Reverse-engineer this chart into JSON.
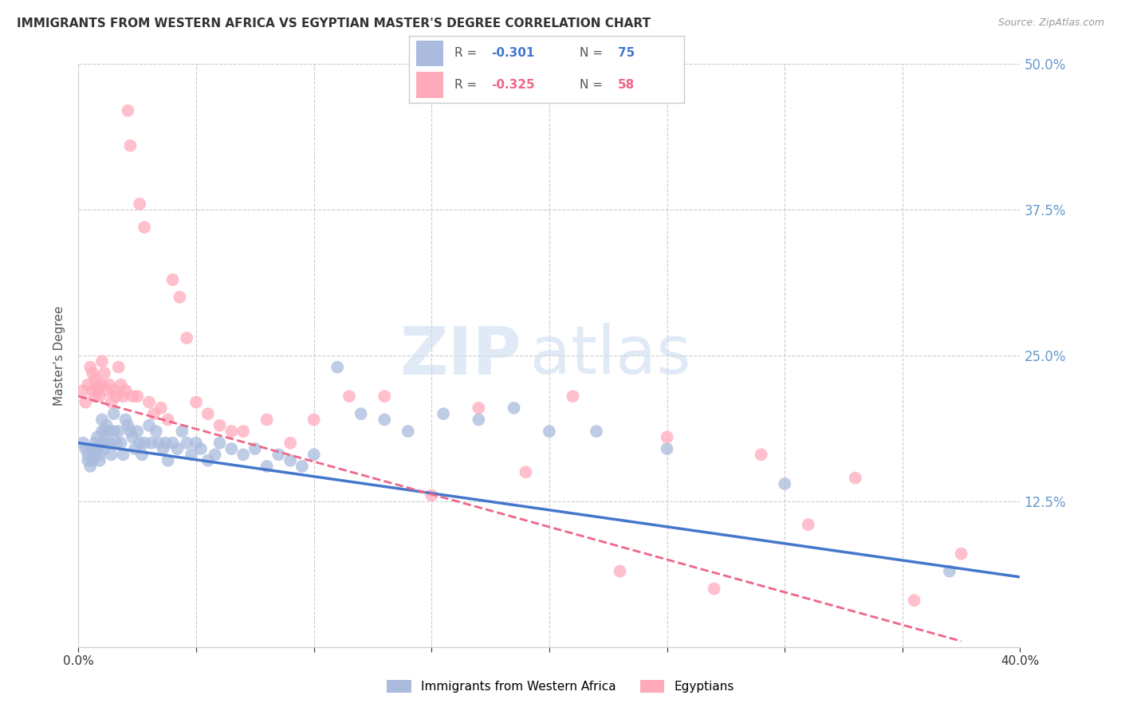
{
  "title": "IMMIGRANTS FROM WESTERN AFRICA VS EGYPTIAN MASTER'S DEGREE CORRELATION CHART",
  "source": "Source: ZipAtlas.com",
  "ylabel": "Master's Degree",
  "yticks": [
    0.0,
    0.125,
    0.25,
    0.375,
    0.5
  ],
  "ytick_labels": [
    "",
    "12.5%",
    "25.0%",
    "37.5%",
    "50.0%"
  ],
  "xlim": [
    0.0,
    0.4
  ],
  "ylim": [
    0.0,
    0.5
  ],
  "color_blue": "#AABBDD",
  "color_pink": "#FFAABB",
  "color_blue_dark": "#4477CC",
  "color_pink_dark": "#EE6688",
  "watermark_zip": "ZIP",
  "watermark_atlas": "atlas",
  "label1": "Immigrants from Western Africa",
  "label2": "Egyptians",
  "blue_x": [
    0.002,
    0.003,
    0.004,
    0.004,
    0.005,
    0.006,
    0.006,
    0.007,
    0.007,
    0.008,
    0.008,
    0.009,
    0.009,
    0.01,
    0.01,
    0.01,
    0.011,
    0.011,
    0.012,
    0.012,
    0.013,
    0.013,
    0.014,
    0.015,
    0.015,
    0.016,
    0.017,
    0.018,
    0.019,
    0.02,
    0.021,
    0.022,
    0.023,
    0.024,
    0.025,
    0.026,
    0.027,
    0.028,
    0.03,
    0.031,
    0.033,
    0.034,
    0.036,
    0.037,
    0.038,
    0.04,
    0.042,
    0.044,
    0.046,
    0.048,
    0.05,
    0.052,
    0.055,
    0.058,
    0.06,
    0.065,
    0.07,
    0.075,
    0.08,
    0.085,
    0.09,
    0.095,
    0.1,
    0.11,
    0.12,
    0.13,
    0.14,
    0.155,
    0.17,
    0.185,
    0.2,
    0.22,
    0.25,
    0.3,
    0.37
  ],
  "blue_y": [
    0.175,
    0.17,
    0.165,
    0.16,
    0.155,
    0.17,
    0.16,
    0.175,
    0.165,
    0.18,
    0.17,
    0.165,
    0.16,
    0.195,
    0.185,
    0.175,
    0.185,
    0.17,
    0.19,
    0.175,
    0.185,
    0.175,
    0.165,
    0.2,
    0.185,
    0.175,
    0.185,
    0.175,
    0.165,
    0.195,
    0.19,
    0.185,
    0.18,
    0.17,
    0.185,
    0.175,
    0.165,
    0.175,
    0.19,
    0.175,
    0.185,
    0.175,
    0.17,
    0.175,
    0.16,
    0.175,
    0.17,
    0.185,
    0.175,
    0.165,
    0.175,
    0.17,
    0.16,
    0.165,
    0.175,
    0.17,
    0.165,
    0.17,
    0.155,
    0.165,
    0.16,
    0.155,
    0.165,
    0.24,
    0.2,
    0.195,
    0.185,
    0.2,
    0.195,
    0.205,
    0.185,
    0.185,
    0.17,
    0.14,
    0.065
  ],
  "pink_x": [
    0.002,
    0.003,
    0.004,
    0.005,
    0.006,
    0.006,
    0.007,
    0.007,
    0.008,
    0.008,
    0.009,
    0.01,
    0.01,
    0.011,
    0.012,
    0.013,
    0.014,
    0.015,
    0.016,
    0.017,
    0.018,
    0.019,
    0.02,
    0.021,
    0.022,
    0.023,
    0.025,
    0.026,
    0.028,
    0.03,
    0.032,
    0.035,
    0.038,
    0.04,
    0.043,
    0.046,
    0.05,
    0.055,
    0.06,
    0.065,
    0.07,
    0.08,
    0.09,
    0.1,
    0.115,
    0.13,
    0.15,
    0.17,
    0.19,
    0.21,
    0.23,
    0.25,
    0.27,
    0.29,
    0.31,
    0.33,
    0.355,
    0.375
  ],
  "pink_y": [
    0.22,
    0.21,
    0.225,
    0.24,
    0.235,
    0.22,
    0.23,
    0.215,
    0.225,
    0.22,
    0.215,
    0.245,
    0.225,
    0.235,
    0.22,
    0.225,
    0.21,
    0.22,
    0.215,
    0.24,
    0.225,
    0.215,
    0.22,
    0.46,
    0.43,
    0.215,
    0.215,
    0.38,
    0.36,
    0.21,
    0.2,
    0.205,
    0.195,
    0.315,
    0.3,
    0.265,
    0.21,
    0.2,
    0.19,
    0.185,
    0.185,
    0.195,
    0.175,
    0.195,
    0.215,
    0.215,
    0.13,
    0.205,
    0.15,
    0.215,
    0.065,
    0.18,
    0.05,
    0.165,
    0.105,
    0.145,
    0.04,
    0.08
  ],
  "blue_trend": [
    0.0,
    0.4,
    0.175,
    0.06
  ],
  "pink_trend": [
    0.0,
    0.375,
    0.215,
    0.005
  ],
  "grid_color": "#CCCCCC",
  "right_axis_color": "#6699CC",
  "legend_r1": "-0.301",
  "legend_n1": "75",
  "legend_r2": "-0.325",
  "legend_n2": "58"
}
